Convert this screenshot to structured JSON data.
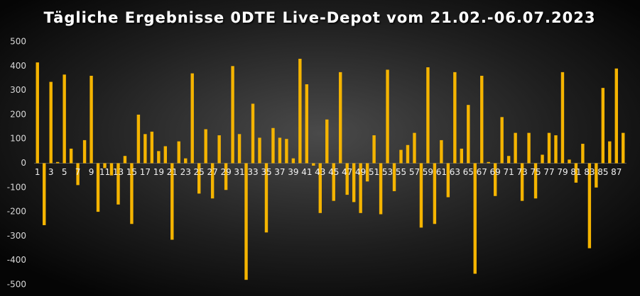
{
  "chart_data": {
    "type": "bar",
    "title": "Tägliche Ergebnisse 0DTE Live-Depot vom 21.02.-06.07.2023",
    "categories": [
      "1",
      null,
      "3",
      null,
      "5",
      null,
      "7",
      null,
      "9",
      null,
      "11",
      null,
      "13",
      null,
      "15",
      null,
      "17",
      null,
      "19",
      null,
      "21",
      null,
      "23",
      null,
      "25",
      null,
      "27",
      null,
      "29",
      null,
      "31",
      null,
      "33",
      null,
      "35",
      null,
      "37",
      null,
      "39",
      null,
      "41",
      null,
      "43",
      null,
      "45",
      null,
      "47",
      null,
      "49",
      null,
      "51",
      null,
      "53",
      null,
      "55",
      null,
      "57",
      null,
      "59",
      null,
      "61",
      null,
      "63",
      null,
      "65",
      null,
      "67",
      null,
      "69",
      null,
      "71",
      null,
      "73",
      null,
      "75",
      null,
      "77",
      null,
      "79",
      null,
      "81",
      null,
      "83",
      null,
      "85",
      null,
      "87",
      null
    ],
    "values": [
      415,
      -255,
      335,
      5,
      365,
      60,
      -90,
      95,
      360,
      -200,
      -20,
      -50,
      -170,
      30,
      -250,
      200,
      120,
      130,
      50,
      70,
      -315,
      90,
      20,
      370,
      -125,
      140,
      -145,
      115,
      -110,
      400,
      120,
      -480,
      245,
      105,
      -285,
      145,
      105,
      100,
      20,
      430,
      325,
      -10,
      -205,
      180,
      -155,
      375,
      -130,
      -160,
      -205,
      -75,
      115,
      -210,
      385,
      -115,
      55,
      75,
      125,
      -265,
      395,
      -250,
      95,
      -140,
      375,
      60,
      240,
      -455,
      360,
      5,
      -135,
      190,
      30,
      125,
      -155,
      125,
      -145,
      35,
      125,
      115,
      375,
      15,
      -80,
      80,
      -350,
      -100,
      310,
      90,
      390,
      125
    ],
    "color": "#f5b400",
    "ylim": [
      -500,
      500
    ],
    "yticks": [
      -500,
      -400,
      -300,
      -200,
      -100,
      0,
      100,
      200,
      300,
      400,
      500
    ],
    "grid": false
  }
}
